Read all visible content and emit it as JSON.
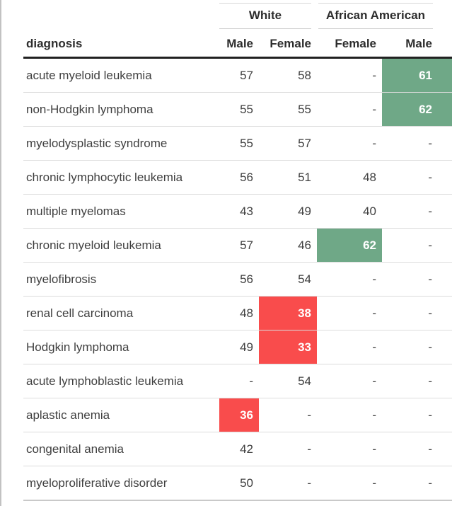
{
  "chart_data": {
    "type": "table",
    "row_label_header": "diagnosis",
    "column_groups": [
      {
        "label": "White",
        "columns": [
          "Male",
          "Female"
        ]
      },
      {
        "label": "African American",
        "columns": [
          "Female",
          "Male"
        ]
      }
    ],
    "missing_marker": "-",
    "rows": [
      {
        "diagnosis": "acute myeloid leukemia",
        "values": [
          57,
          58,
          null,
          61
        ],
        "highlight": [
          null,
          null,
          null,
          "green"
        ]
      },
      {
        "diagnosis": "non-Hodgkin lymphoma",
        "values": [
          55,
          55,
          null,
          62
        ],
        "highlight": [
          null,
          null,
          null,
          "green"
        ]
      },
      {
        "diagnosis": "myelodysplastic syndrome",
        "values": [
          55,
          57,
          null,
          null
        ],
        "highlight": [
          null,
          null,
          null,
          null
        ]
      },
      {
        "diagnosis": "chronic lymphocytic leukemia",
        "values": [
          56,
          51,
          48,
          null
        ],
        "highlight": [
          null,
          null,
          null,
          null
        ]
      },
      {
        "diagnosis": "multiple myelomas",
        "values": [
          43,
          49,
          40,
          null
        ],
        "highlight": [
          null,
          null,
          null,
          null
        ]
      },
      {
        "diagnosis": "chronic myeloid leukemia",
        "values": [
          57,
          46,
          62,
          null
        ],
        "highlight": [
          null,
          null,
          "green",
          null
        ]
      },
      {
        "diagnosis": "myelofibrosis",
        "values": [
          56,
          54,
          null,
          null
        ],
        "highlight": [
          null,
          null,
          null,
          null
        ]
      },
      {
        "diagnosis": "renal cell carcinoma",
        "values": [
          48,
          38,
          null,
          null
        ],
        "highlight": [
          null,
          "red",
          null,
          null
        ]
      },
      {
        "diagnosis": "Hodgkin lymphoma",
        "values": [
          49,
          33,
          null,
          null
        ],
        "highlight": [
          null,
          "red",
          null,
          null
        ]
      },
      {
        "diagnosis": "acute lymphoblastic leukemia",
        "values": [
          null,
          54,
          null,
          null
        ],
        "highlight": [
          null,
          null,
          null,
          null
        ]
      },
      {
        "diagnosis": "aplastic anemia",
        "values": [
          36,
          null,
          null,
          null
        ],
        "highlight": [
          "red",
          null,
          null,
          null
        ]
      },
      {
        "diagnosis": "congenital anemia",
        "values": [
          42,
          null,
          null,
          null
        ],
        "highlight": [
          null,
          null,
          null,
          null
        ]
      },
      {
        "diagnosis": "myeloproliferative disorder",
        "values": [
          50,
          null,
          null,
          null
        ],
        "highlight": [
          null,
          null,
          null,
          null
        ]
      }
    ]
  },
  "colors": {
    "highlight_green": "#6FA887",
    "highlight_red": "#F94C4C"
  }
}
